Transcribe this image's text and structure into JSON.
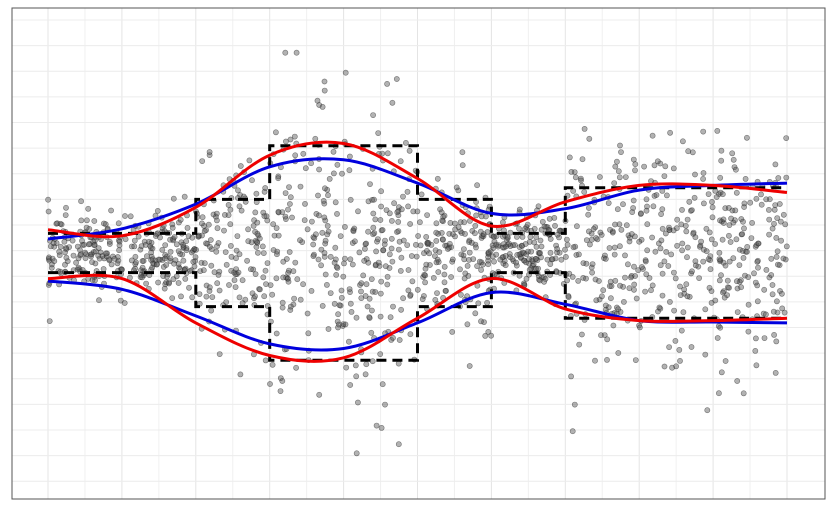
{
  "chart_data": {
    "type": "scatter",
    "title": "",
    "xlabel": "",
    "ylabel": "",
    "xlim": [
      0,
      10
    ],
    "ylim": [
      -4.4,
      4.4
    ],
    "grid": true,
    "point_cloud": {
      "description_color": "#555555",
      "opacity": 0.45,
      "segments": [
        {
          "x": [
            0,
            2
          ],
          "sd": 0.42,
          "n": 300
        },
        {
          "x": [
            2,
            3
          ],
          "sd": 0.9,
          "n": 150
        },
        {
          "x": [
            3,
            5
          ],
          "sd": 1.55,
          "n": 320
        },
        {
          "x": [
            5,
            6
          ],
          "sd": 0.85,
          "n": 160
        },
        {
          "x": [
            6,
            7
          ],
          "sd": 0.42,
          "n": 170
        },
        {
          "x": [
            7,
            10
          ],
          "sd": 1.15,
          "n": 450
        }
      ]
    },
    "series": [
      {
        "style": "dashed-step",
        "color": "#000000",
        "upper": {
          "x": [
            0,
            2,
            2,
            3,
            3,
            5,
            5,
            6,
            6,
            7,
            7,
            10
          ],
          "y": [
            0.42,
            0.42,
            1.15,
            1.15,
            2.3,
            2.3,
            1.15,
            1.15,
            0.42,
            0.42,
            1.4,
            1.4
          ]
        },
        "lower": {
          "x": [
            0,
            2,
            2,
            3,
            3,
            5,
            5,
            6,
            6,
            7,
            7,
            10
          ],
          "y": [
            -0.42,
            -0.42,
            -1.15,
            -1.15,
            -2.3,
            -2.3,
            -1.15,
            -1.15,
            -0.42,
            -0.42,
            -1.4,
            -1.4
          ]
        }
      },
      {
        "style": "solid",
        "color": "#0000dd",
        "upper": {
          "x": [
            0,
            1,
            2,
            3,
            4,
            5,
            6,
            7,
            8,
            9,
            10
          ],
          "y": [
            0.3,
            0.52,
            1.05,
            1.85,
            2.0,
            1.5,
            0.85,
            0.95,
            1.35,
            1.45,
            1.5
          ]
        },
        "lower": {
          "x": [
            0,
            1,
            2,
            3,
            4,
            5,
            6,
            7,
            8,
            9,
            10
          ],
          "y": [
            -0.6,
            -0.78,
            -1.35,
            -1.95,
            -2.05,
            -1.5,
            -0.85,
            -1.1,
            -1.45,
            -1.48,
            -1.5
          ]
        }
      },
      {
        "style": "solid",
        "color": "#ee0000",
        "upper": {
          "x": [
            0,
            1,
            2,
            3,
            4,
            5,
            6,
            7,
            8,
            9,
            10
          ],
          "y": [
            0.5,
            0.37,
            0.98,
            2.1,
            2.35,
            1.6,
            0.58,
            1.1,
            1.45,
            1.45,
            1.3
          ]
        },
        "lower": {
          "x": [
            0,
            1,
            2,
            3,
            4,
            5,
            6,
            7,
            8,
            9,
            10
          ],
          "y": [
            -0.55,
            -0.55,
            -1.5,
            -2.2,
            -2.25,
            -1.4,
            -0.55,
            -1.2,
            -1.45,
            -1.45,
            -1.4
          ]
        }
      }
    ]
  }
}
